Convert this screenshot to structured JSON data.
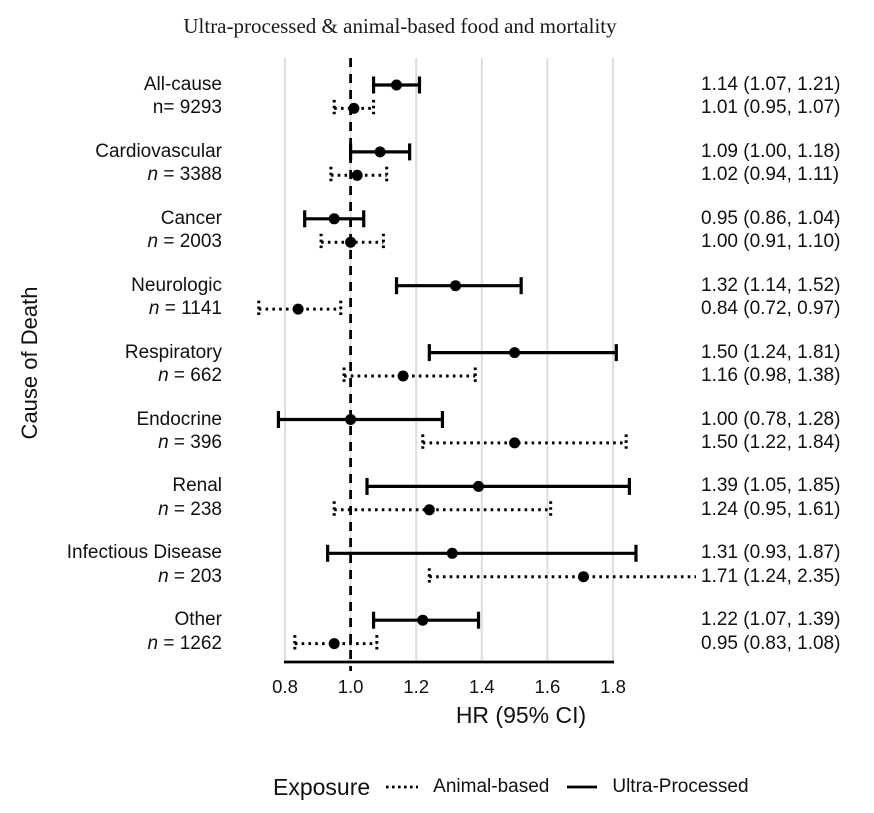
{
  "chart_data": {
    "type": "forest",
    "title": "Ultra-processed & animal-based food and mortality",
    "xlabel": "HR (95% CI)",
    "ylabel": "Cause of Death",
    "x_ticks": [
      0.8,
      1.0,
      1.2,
      1.4,
      1.6,
      1.8
    ],
    "x_tick_labels": [
      "0.8",
      "1.0",
      "1.2",
      "1.4",
      "1.6",
      "1.8"
    ],
    "reference_line": 1.0,
    "grid": "major-vertical-only",
    "legend_position": "bottom",
    "colors": {
      "series": "#000000",
      "gridline": "#dedede",
      "text": "#111111"
    },
    "legend": {
      "title": "Exposure",
      "items": [
        {
          "label": "Animal-based",
          "style": "dotted"
        },
        {
          "label": "Ultra-Processed",
          "style": "solid"
        }
      ]
    },
    "groups": [
      {
        "name": "All-cause",
        "n": 9293,
        "n_italic": "",
        "n_plain": "n= 9293",
        "series": [
          {
            "exposure": "Ultra-Processed",
            "style": "solid",
            "hr": 1.14,
            "lo": 1.07,
            "hi": 1.21,
            "label": "1.14 (1.07, 1.21)"
          },
          {
            "exposure": "Animal-based",
            "style": "dotted",
            "hr": 1.01,
            "lo": 0.95,
            "hi": 1.07,
            "label": "1.01 (0.95, 1.07)"
          }
        ]
      },
      {
        "name": "Cardiovascular",
        "n": 3388,
        "n_italic": "n",
        "n_plain": " = 3388",
        "series": [
          {
            "exposure": "Ultra-Processed",
            "style": "solid",
            "hr": 1.09,
            "lo": 1.0,
            "hi": 1.18,
            "label": "1.09 (1.00, 1.18)"
          },
          {
            "exposure": "Animal-based",
            "style": "dotted",
            "hr": 1.02,
            "lo": 0.94,
            "hi": 1.11,
            "label": "1.02 (0.94, 1.11)"
          }
        ]
      },
      {
        "name": "Cancer",
        "n": 2003,
        "n_italic": "n",
        "n_plain": " = 2003",
        "series": [
          {
            "exposure": "Ultra-Processed",
            "style": "solid",
            "hr": 0.95,
            "lo": 0.86,
            "hi": 1.04,
            "label": "0.95 (0.86, 1.04)"
          },
          {
            "exposure": "Animal-based",
            "style": "dotted",
            "hr": 1.0,
            "lo": 0.91,
            "hi": 1.1,
            "label": "1.00 (0.91, 1.10)"
          }
        ]
      },
      {
        "name": "Neurologic",
        "n": 1141,
        "n_italic": "n",
        "n_plain": " = 1141",
        "series": [
          {
            "exposure": "Ultra-Processed",
            "style": "solid",
            "hr": 1.32,
            "lo": 1.14,
            "hi": 1.52,
            "label": "1.32 (1.14, 1.52)"
          },
          {
            "exposure": "Animal-based",
            "style": "dotted",
            "hr": 0.84,
            "lo": 0.72,
            "hi": 0.97,
            "label": "0.84 (0.72, 0.97)"
          }
        ]
      },
      {
        "name": "Respiratory",
        "n": 662,
        "n_italic": "n",
        "n_plain": " = 662",
        "series": [
          {
            "exposure": "Ultra-Processed",
            "style": "solid",
            "hr": 1.5,
            "lo": 1.24,
            "hi": 1.81,
            "label": "1.50 (1.24, 1.81)"
          },
          {
            "exposure": "Animal-based",
            "style": "dotted",
            "hr": 1.16,
            "lo": 0.98,
            "hi": 1.38,
            "label": "1.16 (0.98, 1.38)"
          }
        ]
      },
      {
        "name": "Endocrine",
        "n": 396,
        "n_italic": "n",
        "n_plain": " = 396",
        "series": [
          {
            "exposure": "Ultra-Processed",
            "style": "solid",
            "hr": 1.0,
            "lo": 0.78,
            "hi": 1.28,
            "label": "1.00 (0.78, 1.28)"
          },
          {
            "exposure": "Animal-based",
            "style": "dotted",
            "hr": 1.5,
            "lo": 1.22,
            "hi": 1.84,
            "label": "1.50 (1.22, 1.84)"
          }
        ]
      },
      {
        "name": "Renal",
        "n": 238,
        "n_italic": "n",
        "n_plain": " = 238",
        "series": [
          {
            "exposure": "Ultra-Processed",
            "style": "solid",
            "hr": 1.39,
            "lo": 1.05,
            "hi": 1.85,
            "label": "1.39 (1.05, 1.85)"
          },
          {
            "exposure": "Animal-based",
            "style": "dotted",
            "hr": 1.24,
            "lo": 0.95,
            "hi": 1.61,
            "label": "1.24 (0.95, 1.61)"
          }
        ]
      },
      {
        "name": "Infectious Disease",
        "n": 203,
        "n_italic": "n",
        "n_plain": " = 203",
        "series": [
          {
            "exposure": "Ultra-Processed",
            "style": "solid",
            "hr": 1.31,
            "lo": 0.93,
            "hi": 1.87,
            "label": "1.31 (0.93, 1.87)"
          },
          {
            "exposure": "Animal-based",
            "style": "dotted",
            "hr": 1.71,
            "lo": 1.24,
            "hi": 2.35,
            "clip_hi": true,
            "label": "1.71 (1.24, 2.35)"
          }
        ]
      },
      {
        "name": "Other",
        "n": 1262,
        "n_italic": "n",
        "n_plain": " = 1262",
        "series": [
          {
            "exposure": "Ultra-Processed",
            "style": "solid",
            "hr": 1.22,
            "lo": 1.07,
            "hi": 1.39,
            "label": "1.22 (1.07, 1.39)"
          },
          {
            "exposure": "Animal-based",
            "style": "dotted",
            "hr": 0.95,
            "lo": 0.83,
            "hi": 1.08,
            "label": "0.95 (0.83, 1.08)"
          }
        ]
      }
    ]
  }
}
